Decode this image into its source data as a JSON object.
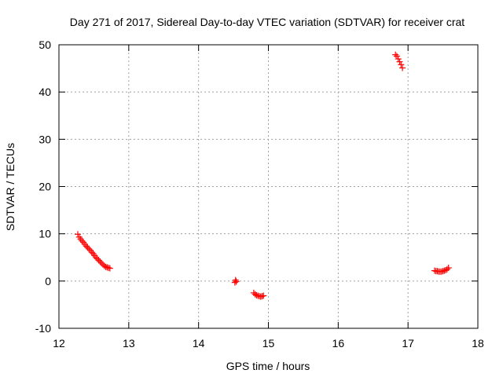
{
  "chart_data": {
    "type": "scatter",
    "title": "Day 271 of 2017, Sidereal Day-to-day VTEC variation (SDTVAR) for receiver crat",
    "xlabel": "GPS time / hours",
    "ylabel": "SDTVAR / TECUs",
    "xlim": [
      12,
      18
    ],
    "ylim": [
      -10,
      50
    ],
    "xticks": [
      "12",
      "13",
      "14",
      "15",
      "16",
      "17",
      "18"
    ],
    "yticks": [
      "-10",
      "0",
      "10",
      "20",
      "30",
      "40",
      "50"
    ],
    "grid": true,
    "legend": "none",
    "marker": "plus",
    "marker_color": "#ff0000",
    "series": [
      {
        "color": "#ff0000",
        "x": [
          12.27,
          12.29,
          12.31,
          12.33,
          12.35,
          12.37,
          12.39,
          12.41,
          12.43,
          12.45,
          12.47,
          12.49,
          12.51,
          12.53,
          12.55,
          12.57,
          12.59,
          12.61,
          12.63,
          12.65,
          12.67,
          12.69,
          12.71,
          12.73,
          14.52,
          14.53,
          14.54,
          14.79,
          14.81,
          14.83,
          14.85,
          14.87,
          14.89,
          14.91,
          14.93,
          16.82,
          16.84,
          16.86,
          16.88,
          16.9,
          16.92,
          17.38,
          17.4,
          17.42,
          17.44,
          17.46,
          17.48,
          17.5,
          17.52,
          17.54,
          17.56,
          17.58
        ],
        "y": [
          9.9,
          9.3,
          8.9,
          8.5,
          8.2,
          7.8,
          7.4,
          7.1,
          6.8,
          6.5,
          6.1,
          5.8,
          5.4,
          5.0,
          4.7,
          4.4,
          4.1,
          3.8,
          3.5,
          3.2,
          3.0,
          2.9,
          2.8,
          2.7,
          -0.3,
          0.2,
          -0.1,
          -2.5,
          -2.8,
          -3.0,
          -3.1,
          -3.2,
          -3.3,
          -3.2,
          -3.1,
          47.9,
          47.6,
          47.0,
          46.4,
          45.8,
          45.1,
          2.2,
          2.1,
          2.1,
          2.0,
          2.0,
          2.0,
          2.1,
          2.2,
          2.3,
          2.5,
          2.8
        ]
      }
    ]
  }
}
